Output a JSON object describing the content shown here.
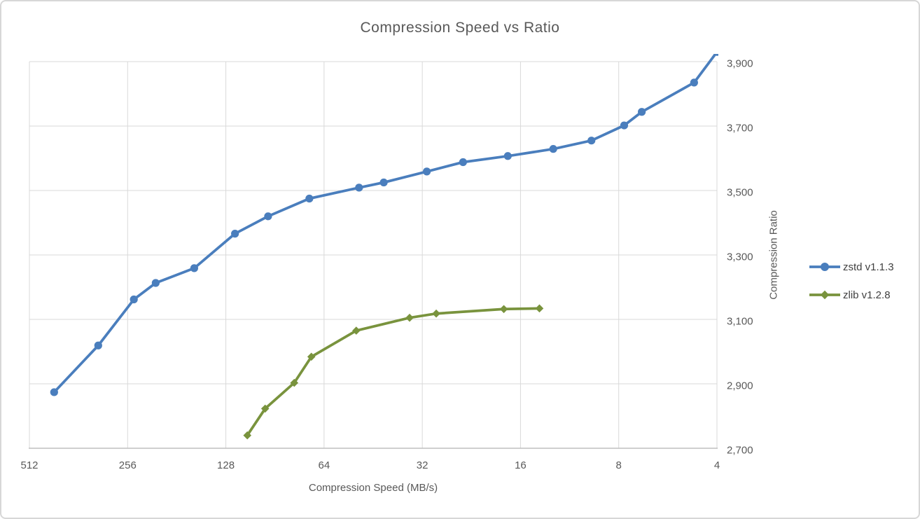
{
  "chart_data": {
    "type": "line",
    "title": "Compression Speed vs Ratio",
    "xlabel": "Compression Speed (MB/s)",
    "ylabel": "Compression Ratio",
    "x_scale": "log2_reversed",
    "xlim": [
      512,
      4
    ],
    "ylim": [
      2.7,
      3.9
    ],
    "grid": true,
    "legend_position": "right",
    "x_ticks": [
      512,
      256,
      128,
      64,
      32,
      16,
      8,
      4
    ],
    "x_tick_labels": [
      "512",
      "256",
      "128",
      "64",
      "32",
      "16",
      "8",
      "4"
    ],
    "y_ticks": [
      2.7,
      2.9,
      3.1,
      3.3,
      3.5,
      3.7,
      3.9
    ],
    "y_tick_labels": [
      "2,700",
      "2,900",
      "3,100",
      "3,300",
      "3,500",
      "3,700",
      "3,900"
    ],
    "colors": {
      "zstd": "#4A7EBD",
      "zlib": "#79933D",
      "gridline": "#D9D9D9",
      "axis_line": "#BFBFBF",
      "text": "#595959"
    },
    "series": [
      {
        "name": "zstd v1.1.3",
        "color": "#4A7EBD",
        "marker": "circle",
        "points": [
          {
            "speed": 430,
            "ratio": 2.874
          },
          {
            "speed": 315,
            "ratio": 3.019
          },
          {
            "speed": 245,
            "ratio": 3.162
          },
          {
            "speed": 210,
            "ratio": 3.213
          },
          {
            "speed": 160,
            "ratio": 3.259
          },
          {
            "speed": 120,
            "ratio": 3.366
          },
          {
            "speed": 95,
            "ratio": 3.42
          },
          {
            "speed": 71,
            "ratio": 3.475
          },
          {
            "speed": 50,
            "ratio": 3.509
          },
          {
            "speed": 42,
            "ratio": 3.525
          },
          {
            "speed": 31,
            "ratio": 3.559
          },
          {
            "speed": 24,
            "ratio": 3.588
          },
          {
            "speed": 17.5,
            "ratio": 3.607
          },
          {
            "speed": 12.7,
            "ratio": 3.629
          },
          {
            "speed": 9.7,
            "ratio": 3.655
          },
          {
            "speed": 7.7,
            "ratio": 3.702
          },
          {
            "speed": 6.8,
            "ratio": 3.744
          },
          {
            "speed": 4.7,
            "ratio": 3.835
          },
          {
            "speed": 4.0,
            "ratio": 3.93
          }
        ]
      },
      {
        "name": "zlib v1.2.8",
        "color": "#79933D",
        "marker": "diamond",
        "points": [
          {
            "speed": 110,
            "ratio": 2.74
          },
          {
            "speed": 97,
            "ratio": 2.823
          },
          {
            "speed": 79,
            "ratio": 2.903
          },
          {
            "speed": 70,
            "ratio": 2.984
          },
          {
            "speed": 51,
            "ratio": 3.065
          },
          {
            "speed": 35,
            "ratio": 3.105
          },
          {
            "speed": 29,
            "ratio": 3.118
          },
          {
            "speed": 18,
            "ratio": 3.132
          },
          {
            "speed": 14,
            "ratio": 3.134
          }
        ]
      }
    ]
  }
}
